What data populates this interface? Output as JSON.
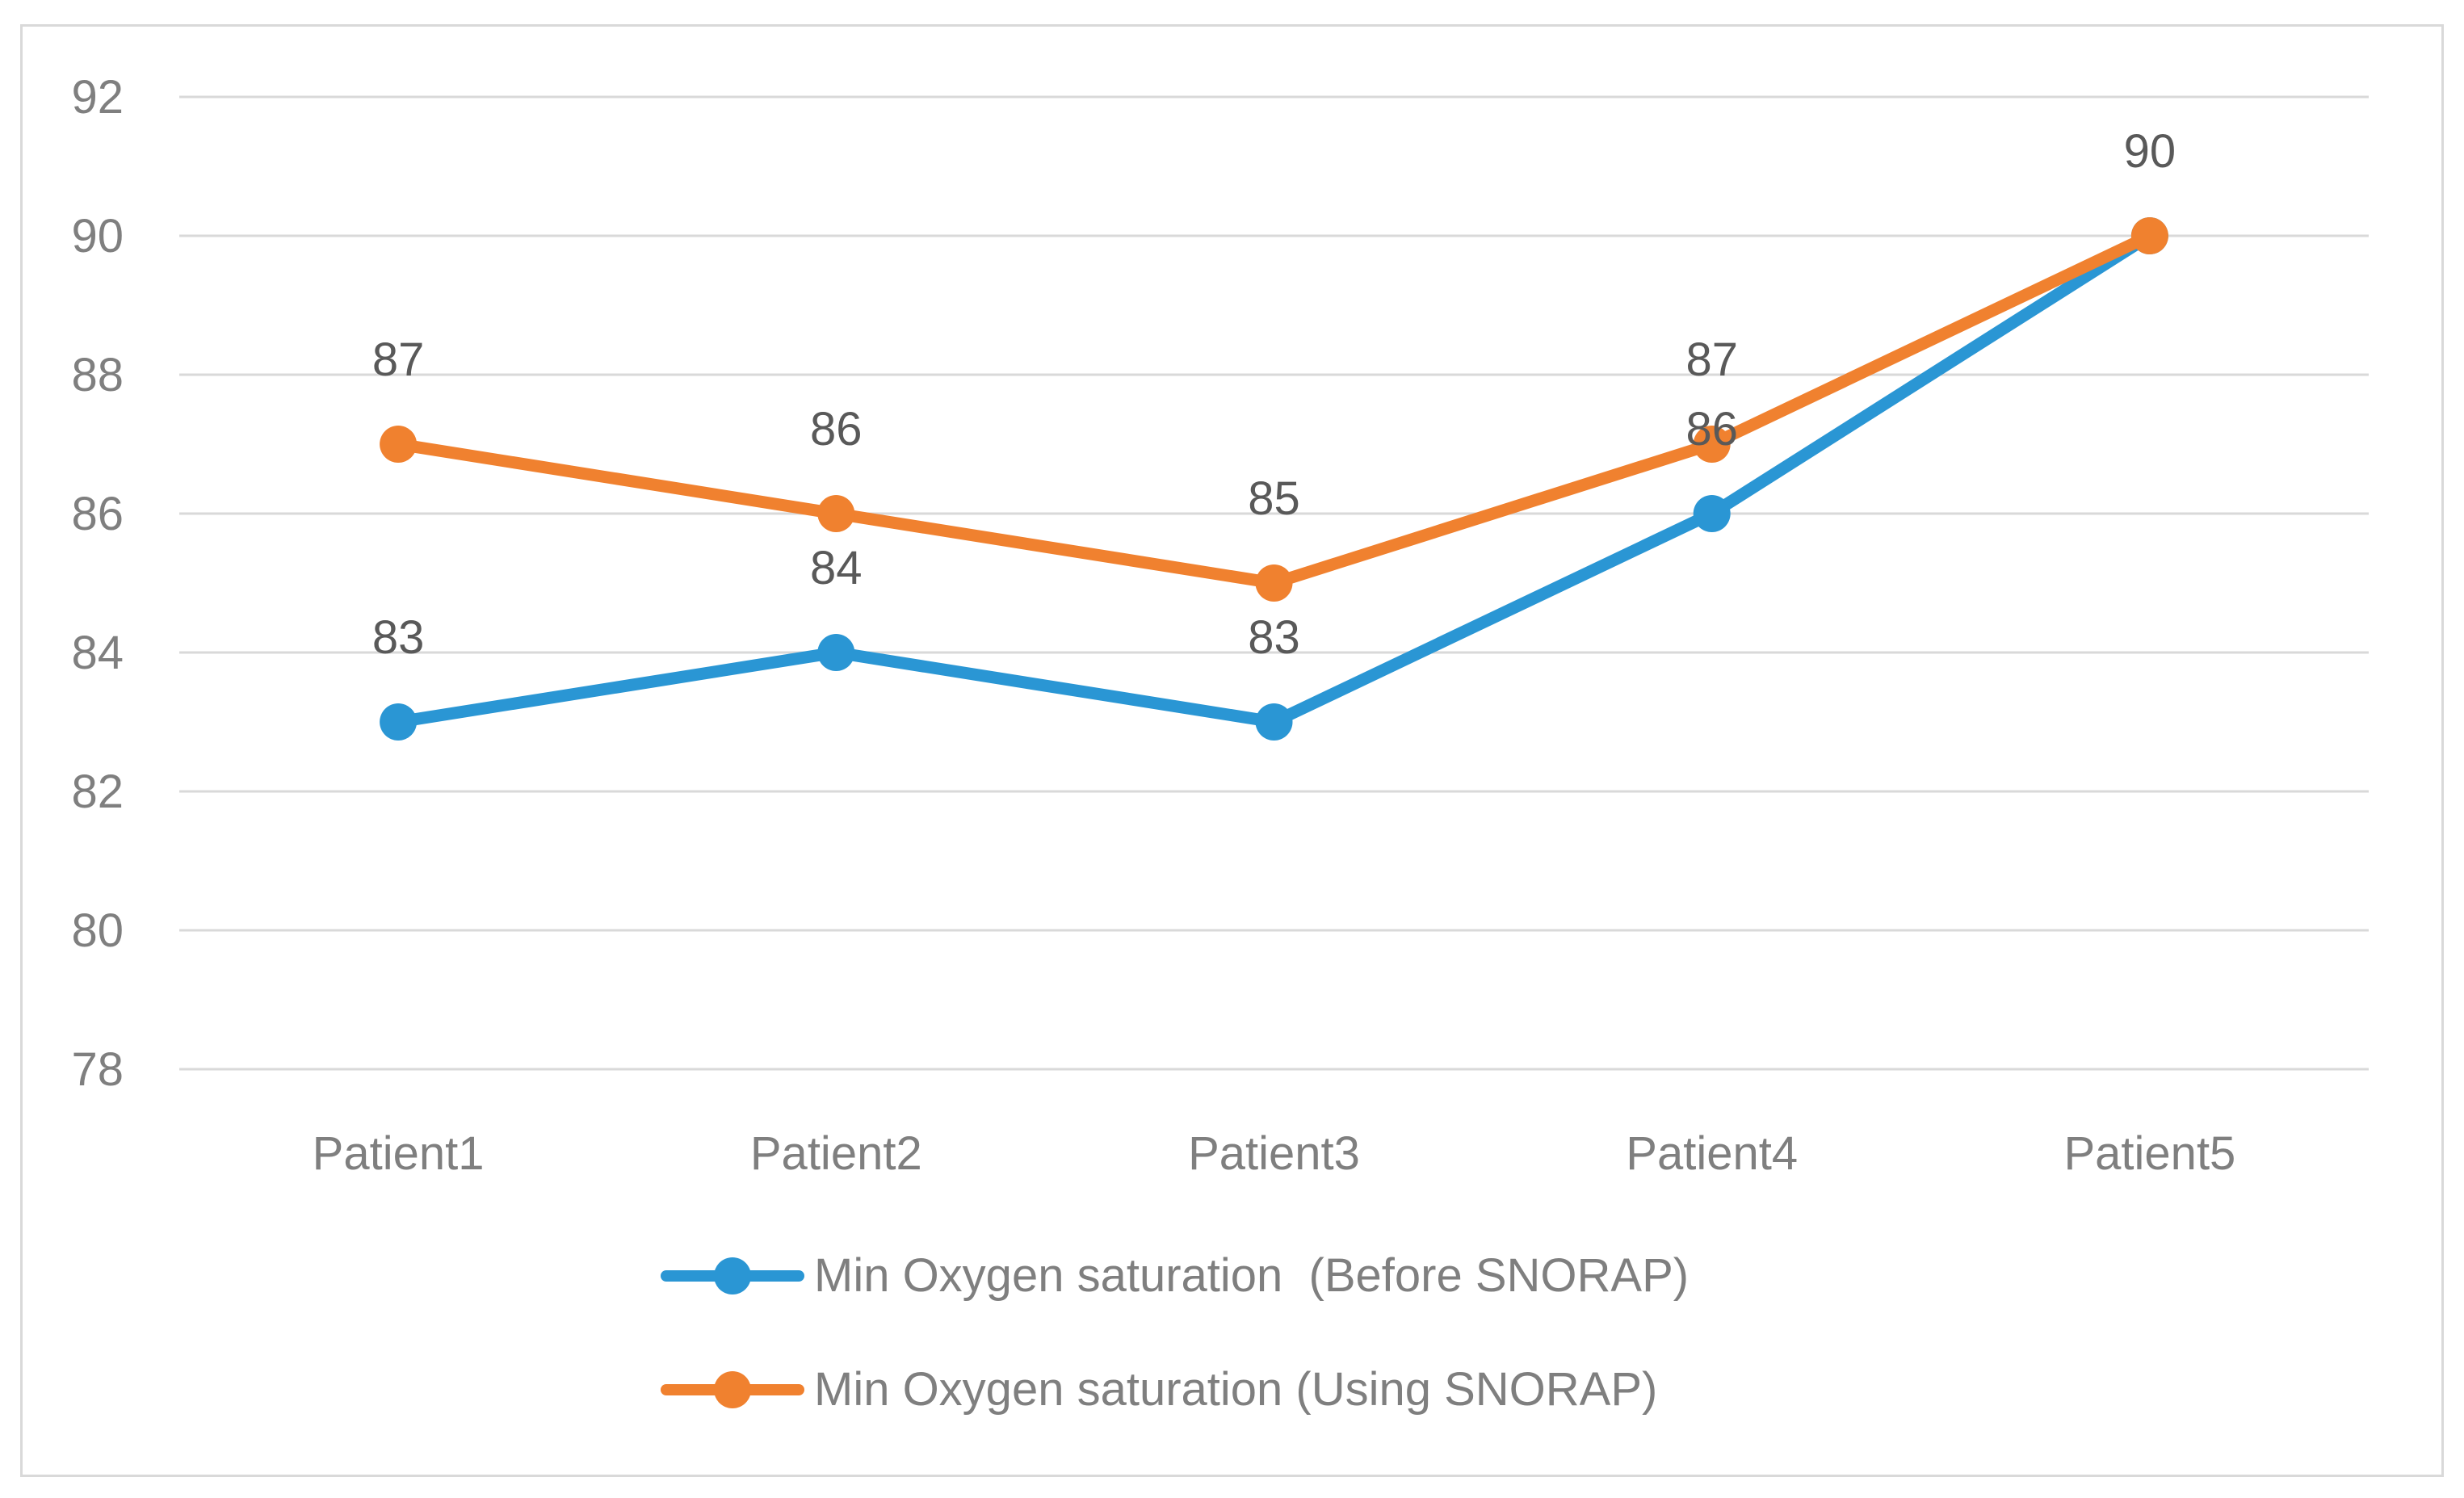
{
  "figure": {
    "background_color": "#FFFFFF",
    "frame_color": "#D9D9D9"
  },
  "chart_data": {
    "type": "line",
    "title": "",
    "xlabel": "",
    "ylabel": "",
    "categories": [
      "Patient1",
      "Patient2",
      "Patient3",
      "Patient4",
      "Patient5"
    ],
    "series": [
      {
        "name": "Min Oxygen saturation  (Before SNORAP)",
        "values": [
          83,
          84,
          83,
          86,
          90
        ],
        "color": "#2A96D4",
        "labels_visible": [
          true,
          true,
          true,
          true,
          false
        ]
      },
      {
        "name": "Min Oxygen saturation (Using SNORAP)",
        "values": [
          87,
          86,
          85,
          87,
          90
        ],
        "color": "#F0812F",
        "labels_visible": [
          true,
          true,
          true,
          true,
          true
        ]
      }
    ],
    "ylim": [
      78,
      92
    ],
    "ytick_step": 2,
    "yticks": [
      "78",
      "80",
      "82",
      "84",
      "86",
      "88",
      "90",
      "92"
    ],
    "grid": true,
    "gridline_color": "#D9D9D9",
    "axis_text_color": "#7F7F7F",
    "data_label_color": "#595959",
    "data_labels_shown": true,
    "legend_position": "bottom",
    "marker_style": "circle"
  }
}
